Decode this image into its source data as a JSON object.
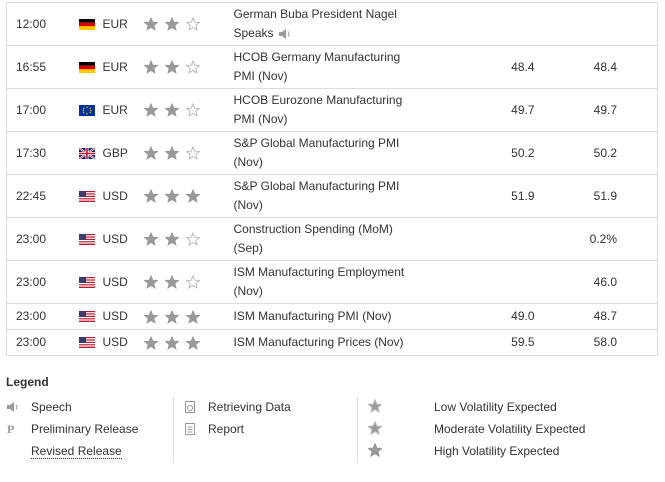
{
  "rows": [
    {
      "time": "12:00",
      "currency": "EUR",
      "volatility": 2,
      "event": "German Buba President Nagel Speaks"
    },
    {
      "time": "16:55",
      "currency": "EUR",
      "volatility": 2,
      "event": "HCOB Germany Manufacturing PMI (Nov)",
      "actual": "48.4",
      "forecast": "48.4"
    },
    {
      "time": "17:00",
      "currency": "EUR",
      "volatility": 2,
      "event": "HCOB Eurozone Manufacturing PMI (Nov)",
      "actual": "49.7",
      "forecast": "49.7"
    },
    {
      "time": "17:30",
      "currency": "GBP",
      "volatility": 2,
      "event": "S&P Global Manufacturing PMI (Nov)",
      "actual": "50.2",
      "forecast": "50.2"
    },
    {
      "time": "22:45",
      "currency": "USD",
      "volatility": 3,
      "event": "S&P Global Manufacturing PMI (Nov)",
      "actual": "51.9",
      "forecast": "51.9"
    },
    {
      "time": "23:00",
      "currency": "USD",
      "volatility": 2,
      "event": "Construction Spending (MoM) (Sep)",
      "forecast": "0.2%"
    },
    {
      "time": "23:00",
      "currency": "USD",
      "volatility": 2,
      "event": "ISM Manufacturing Employment (Nov)",
      "forecast": "46.0"
    },
    {
      "time": "23:00",
      "currency": "USD",
      "volatility": 3,
      "event": "ISM Manufacturing PMI (Nov)",
      "actual": "49.0",
      "forecast": "48.7"
    },
    {
      "time": "23:00",
      "currency": "USD",
      "volatility": 3,
      "event": "ISM Manufacturing Prices (Nov)",
      "actual": "59.5",
      "forecast": "58.0"
    }
  ],
  "legend": {
    "title": "Legend",
    "speech": "Speech",
    "preliminary": "Preliminary Release",
    "revised": "Revised Release",
    "retrieving": "Retrieving Data",
    "report": "Report",
    "volatility": [
      {
        "level": 1,
        "label": "Low Volatility Expected"
      },
      {
        "level": 2,
        "label": "Moderate Volatility Expected"
      },
      {
        "level": 3,
        "label": "High Volatility Expected"
      }
    ]
  }
}
